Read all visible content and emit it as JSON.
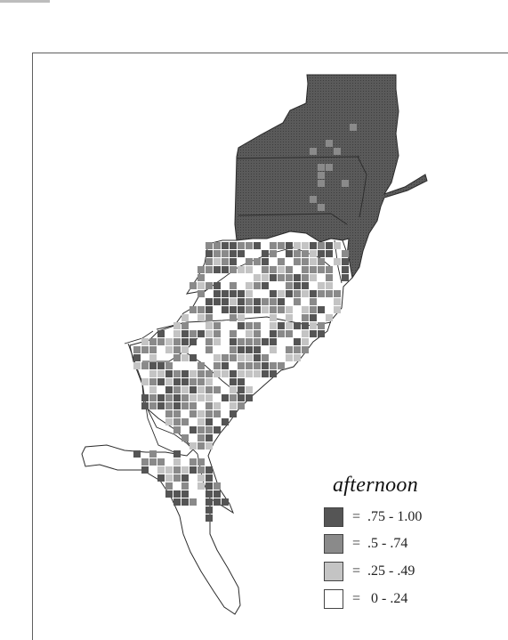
{
  "legend": {
    "title": "afternoon",
    "items": [
      {
        "label": "=  .75 - 1.00",
        "color": "#555555"
      },
      {
        "label": "=  .5 - .74",
        "color": "#8a8a8a"
      },
      {
        "label": "=  .25 - .49",
        "color": "#c4c4c4"
      },
      {
        "label": "=   0 - .24",
        "color": "#ffffff"
      }
    ]
  },
  "colors": {
    "high": "#555555",
    "mid": "#8a8a8a",
    "low": "#c4c4c4",
    "none": "#ffffff",
    "outline": "#2b2b2b"
  }
}
